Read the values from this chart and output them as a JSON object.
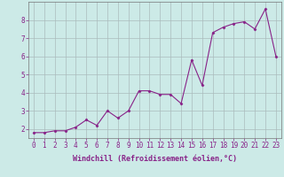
{
  "x": [
    0,
    1,
    2,
    3,
    4,
    5,
    6,
    7,
    8,
    9,
    10,
    11,
    12,
    13,
    14,
    15,
    16,
    17,
    18,
    19,
    20,
    21,
    22,
    23
  ],
  "y": [
    1.8,
    1.8,
    1.9,
    1.9,
    2.1,
    2.5,
    2.2,
    3.0,
    2.6,
    3.0,
    4.1,
    4.1,
    3.9,
    3.9,
    3.4,
    5.8,
    4.4,
    7.3,
    7.6,
    7.8,
    7.9,
    7.5,
    8.6,
    6.0
  ],
  "line_color": "#882288",
  "marker": "D",
  "marker_size": 1.5,
  "line_width": 0.8,
  "bg_color": "#cceae7",
  "grid_color": "#aabcbc",
  "xlabel": "Windchill (Refroidissement éolien,°C)",
  "xlabel_color": "#882288",
  "tick_color": "#882288",
  "xlim": [
    -0.5,
    23.5
  ],
  "ylim": [
    1.5,
    9.0
  ],
  "yticks": [
    2,
    3,
    4,
    5,
    6,
    7,
    8
  ],
  "xtick_labels": [
    "0",
    "1",
    "2",
    "3",
    "4",
    "5",
    "6",
    "7",
    "8",
    "9",
    "10",
    "11",
    "12",
    "13",
    "14",
    "15",
    "16",
    "17",
    "18",
    "19",
    "20",
    "21",
    "22",
    "23"
  ],
  "xlabel_fontsize": 6.0,
  "tick_fontsize": 5.5
}
